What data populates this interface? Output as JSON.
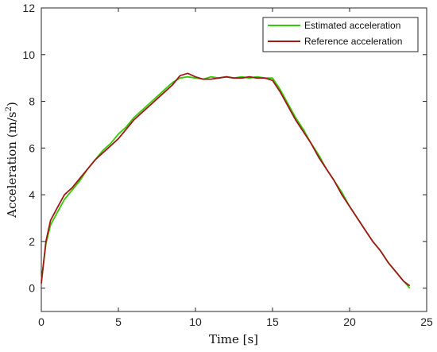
{
  "chart_data": {
    "type": "line",
    "xlabel": "Time [s]",
    "ylabel_main": "Acceleration (m/s",
    "ylabel_sup": "2",
    "ylabel_close": ")",
    "xlim": [
      0,
      25
    ],
    "ylim": [
      -1,
      12
    ],
    "xticks": [
      0,
      5,
      10,
      15,
      20,
      25
    ],
    "yticks": [
      0,
      2,
      4,
      6,
      8,
      10,
      12
    ],
    "grid": false,
    "legend_position": "top-right",
    "series": [
      {
        "name": "Estimated acceleration",
        "color": "#33cc00",
        "x": [
          0,
          0.3,
          0.6,
          1,
          1.5,
          2,
          2.5,
          3,
          3.5,
          4,
          4.5,
          5,
          5.5,
          6,
          6.5,
          7,
          7.5,
          8,
          8.5,
          9,
          9.5,
          10,
          10.5,
          11,
          11.5,
          12,
          12.5,
          13,
          13.5,
          14,
          14.5,
          15,
          15.5,
          16,
          16.5,
          17,
          17.5,
          18,
          18.5,
          19,
          19.5,
          20,
          20.5,
          21,
          21.5,
          22,
          22.5,
          23,
          23.5,
          23.9
        ],
        "values": [
          0.3,
          1.9,
          2.7,
          3.2,
          3.8,
          4.2,
          4.6,
          5.1,
          5.5,
          5.9,
          6.2,
          6.6,
          6.9,
          7.3,
          7.6,
          7.9,
          8.2,
          8.5,
          8.8,
          9.0,
          9.05,
          9.0,
          8.95,
          9.05,
          9.0,
          9.05,
          9.0,
          9.05,
          9.0,
          9.05,
          9.0,
          9.0,
          8.5,
          7.9,
          7.3,
          6.8,
          6.2,
          5.7,
          5.1,
          4.6,
          4.1,
          3.5,
          3.0,
          2.5,
          2.0,
          1.6,
          1.1,
          0.7,
          0.3,
          0.0
        ]
      },
      {
        "name": "Reference acceleration",
        "color": "#a01818",
        "x": [
          0,
          0.3,
          0.6,
          1,
          1.5,
          2,
          2.5,
          3,
          3.5,
          4,
          4.5,
          5,
          5.5,
          6,
          6.5,
          7,
          7.5,
          8,
          8.5,
          9,
          9.5,
          10,
          10.5,
          11,
          11.5,
          12,
          12.5,
          13,
          13.5,
          14,
          14.5,
          15,
          15.5,
          16,
          16.5,
          17,
          17.5,
          18,
          18.5,
          19,
          19.5,
          20,
          20.5,
          21,
          21.5,
          22,
          22.5,
          23,
          23.5,
          23.9
        ],
        "values": [
          0.2,
          2.0,
          2.9,
          3.4,
          4.0,
          4.3,
          4.7,
          5.1,
          5.5,
          5.8,
          6.1,
          6.4,
          6.8,
          7.2,
          7.5,
          7.8,
          8.1,
          8.4,
          8.7,
          9.1,
          9.2,
          9.05,
          8.95,
          8.95,
          9.0,
          9.05,
          9.0,
          9.0,
          9.05,
          9.0,
          9.0,
          8.9,
          8.4,
          7.8,
          7.2,
          6.7,
          6.2,
          5.6,
          5.1,
          4.6,
          4.0,
          3.5,
          3.0,
          2.5,
          2.0,
          1.6,
          1.1,
          0.7,
          0.3,
          0.1
        ]
      }
    ]
  }
}
